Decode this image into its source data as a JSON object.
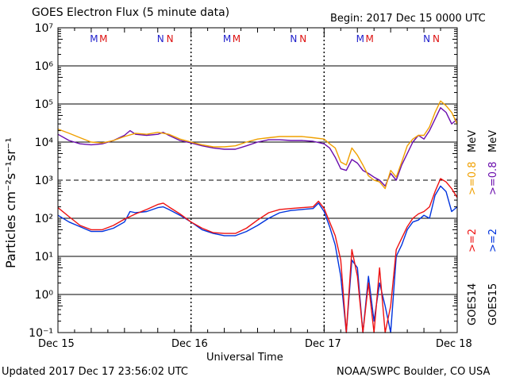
{
  "title": "GOES Electron Flux (5 minute data)",
  "begin": "Begin: 2017 Dec 15 0000 UTC",
  "updated": "Updated 2017 Dec 17 23:56:02 UTC",
  "credit": "NOAA/SWPC Boulder, CO USA",
  "colors": {
    "goes15_gt0_8": "#6a0dad",
    "goes14_gt0_8": "#f0a000",
    "goes15_gt2": "#0033dd",
    "goes14_gt2": "#ee1111",
    "marker_M_blue": "#2222cc",
    "marker_M_red": "#dd1111"
  },
  "chart_data": {
    "type": "line",
    "xlabel": "Universal Time",
    "ylabel": "Particles cm⁻²s⁻¹sr⁻¹",
    "xlim": [
      0,
      72
    ],
    "x_unit": "hours since 2017 Dec 15 0000 UTC",
    "ylim": [
      0.1,
      10000000
    ],
    "yscale": "log",
    "x_ticks": [
      "Dec 15",
      "Dec 16",
      "Dec 17",
      "Dec 18"
    ],
    "y_ticks": [
      "10⁻¹",
      "10⁰",
      "10¹",
      "10²",
      "10³",
      "10⁴",
      "10⁵",
      "10⁶",
      "10⁷"
    ],
    "threshold_line": 1000,
    "legend_right": {
      "goes14": "GOES14",
      "goes15": "GOES15",
      "gt2": ">=2",
      "gt0_8": ">=0.8",
      "unit": "MeV"
    },
    "markers": [
      {
        "hour": 6.5,
        "label": "M",
        "color": "blue"
      },
      {
        "hour": 8.2,
        "label": "M",
        "color": "red"
      },
      {
        "hour": 18.5,
        "label": "N",
        "color": "blue"
      },
      {
        "hour": 20.2,
        "label": "N",
        "color": "red"
      },
      {
        "hour": 30.5,
        "label": "M",
        "color": "blue"
      },
      {
        "hour": 32.2,
        "label": "M",
        "color": "red"
      },
      {
        "hour": 42.5,
        "label": "N",
        "color": "blue"
      },
      {
        "hour": 44.2,
        "label": "N",
        "color": "red"
      },
      {
        "hour": 54.5,
        "label": "M",
        "color": "blue"
      },
      {
        "hour": 56.2,
        "label": "M",
        "color": "red"
      },
      {
        "hour": 66.5,
        "label": "N",
        "color": "blue"
      },
      {
        "hour": 68.2,
        "label": "N",
        "color": "red"
      }
    ],
    "series": [
      {
        "name": "GOES15 >=0.8 MeV",
        "color": "#6a0dad",
        "points": [
          [
            0,
            16000
          ],
          [
            2,
            11000
          ],
          [
            4,
            9000
          ],
          [
            6,
            8500
          ],
          [
            8,
            9000
          ],
          [
            10,
            11000
          ],
          [
            12,
            15000
          ],
          [
            13,
            20000
          ],
          [
            14,
            16000
          ],
          [
            16,
            15000
          ],
          [
            18,
            16000
          ],
          [
            19,
            18000
          ],
          [
            20,
            15000
          ],
          [
            22,
            11000
          ],
          [
            24,
            9500
          ],
          [
            26,
            8000
          ],
          [
            28,
            7000
          ],
          [
            30,
            6500
          ],
          [
            32,
            6500
          ],
          [
            34,
            8000
          ],
          [
            36,
            10000
          ],
          [
            38,
            11500
          ],
          [
            40,
            11500
          ],
          [
            42,
            11000
          ],
          [
            44,
            11000
          ],
          [
            46,
            10500
          ],
          [
            48,
            9000
          ],
          [
            49,
            7000
          ],
          [
            50,
            4000
          ],
          [
            51,
            2000
          ],
          [
            52,
            1800
          ],
          [
            53,
            3500
          ],
          [
            54,
            2800
          ],
          [
            55,
            1800
          ],
          [
            56,
            1500
          ],
          [
            57,
            1200
          ],
          [
            58,
            1000
          ],
          [
            59,
            700
          ],
          [
            60,
            1500
          ],
          [
            61,
            1000
          ],
          [
            62,
            2500
          ],
          [
            63,
            5000
          ],
          [
            64,
            10000
          ],
          [
            65,
            15000
          ],
          [
            66,
            12000
          ],
          [
            67,
            20000
          ],
          [
            68,
            40000
          ],
          [
            69,
            80000
          ],
          [
            70,
            60000
          ],
          [
            71,
            30000
          ],
          [
            72,
            40000
          ]
        ]
      },
      {
        "name": "GOES14 >=0.8 MeV",
        "color": "#f0a000",
        "points": [
          [
            0,
            22000
          ],
          [
            2,
            17000
          ],
          [
            4,
            13000
          ],
          [
            6,
            10000
          ],
          [
            8,
            9500
          ],
          [
            10,
            11000
          ],
          [
            12,
            14000
          ],
          [
            14,
            17000
          ],
          [
            16,
            16000
          ],
          [
            18,
            18000
          ],
          [
            20,
            16000
          ],
          [
            22,
            12000
          ],
          [
            24,
            10000
          ],
          [
            26,
            8500
          ],
          [
            28,
            7500
          ],
          [
            30,
            7500
          ],
          [
            32,
            8000
          ],
          [
            34,
            10000
          ],
          [
            36,
            12000
          ],
          [
            38,
            13000
          ],
          [
            40,
            14000
          ],
          [
            42,
            14000
          ],
          [
            44,
            14000
          ],
          [
            46,
            13000
          ],
          [
            48,
            12000
          ],
          [
            49,
            9000
          ],
          [
            50,
            7000
          ],
          [
            51,
            3000
          ],
          [
            52,
            2500
          ],
          [
            53,
            7000
          ],
          [
            54,
            4500
          ],
          [
            55,
            2500
          ],
          [
            56,
            1300
          ],
          [
            57,
            1000
          ],
          [
            58,
            900
          ],
          [
            59,
            600
          ],
          [
            60,
            1800
          ],
          [
            61,
            1200
          ],
          [
            62,
            3000
          ],
          [
            63,
            8000
          ],
          [
            64,
            12000
          ],
          [
            65,
            15000
          ],
          [
            66,
            15000
          ],
          [
            67,
            25000
          ],
          [
            68,
            60000
          ],
          [
            69,
            120000
          ],
          [
            70,
            90000
          ],
          [
            71,
            60000
          ],
          [
            72,
            30000
          ]
        ]
      },
      {
        "name": "GOES15 >=2 MeV",
        "color": "#0033dd",
        "points": [
          [
            0,
            120
          ],
          [
            2,
            80
          ],
          [
            4,
            60
          ],
          [
            6,
            45
          ],
          [
            8,
            45
          ],
          [
            10,
            55
          ],
          [
            12,
            80
          ],
          [
            13,
            150
          ],
          [
            14,
            140
          ],
          [
            16,
            150
          ],
          [
            18,
            190
          ],
          [
            19,
            200
          ],
          [
            20,
            170
          ],
          [
            22,
            120
          ],
          [
            24,
            80
          ],
          [
            26,
            50
          ],
          [
            28,
            40
          ],
          [
            30,
            35
          ],
          [
            32,
            35
          ],
          [
            34,
            45
          ],
          [
            36,
            65
          ],
          [
            38,
            100
          ],
          [
            40,
            140
          ],
          [
            42,
            160
          ],
          [
            44,
            170
          ],
          [
            46,
            180
          ],
          [
            47,
            250
          ],
          [
            48,
            150
          ],
          [
            49,
            60
          ],
          [
            50,
            20
          ],
          [
            51,
            3
          ],
          [
            52,
            0.1
          ],
          [
            53,
            8
          ],
          [
            54,
            5
          ],
          [
            55,
            0.1
          ],
          [
            56,
            3
          ],
          [
            57,
            0.2
          ],
          [
            58,
            2
          ],
          [
            59,
            0.5
          ],
          [
            60,
            0.1
          ],
          [
            61,
            10
          ],
          [
            62,
            20
          ],
          [
            63,
            50
          ],
          [
            64,
            80
          ],
          [
            65,
            90
          ],
          [
            66,
            120
          ],
          [
            67,
            100
          ],
          [
            68,
            400
          ],
          [
            69,
            700
          ],
          [
            70,
            500
          ],
          [
            71,
            150
          ],
          [
            72,
            200
          ]
        ]
      },
      {
        "name": "GOES14 >=2 MeV",
        "color": "#ee1111",
        "points": [
          [
            0,
            190
          ],
          [
            2,
            110
          ],
          [
            4,
            65
          ],
          [
            6,
            50
          ],
          [
            8,
            50
          ],
          [
            10,
            65
          ],
          [
            12,
            95
          ],
          [
            14,
            130
          ],
          [
            16,
            170
          ],
          [
            18,
            230
          ],
          [
            19,
            250
          ],
          [
            20,
            200
          ],
          [
            22,
            130
          ],
          [
            24,
            80
          ],
          [
            26,
            55
          ],
          [
            28,
            42
          ],
          [
            30,
            40
          ],
          [
            32,
            40
          ],
          [
            34,
            55
          ],
          [
            36,
            90
          ],
          [
            38,
            140
          ],
          [
            40,
            170
          ],
          [
            42,
            180
          ],
          [
            44,
            190
          ],
          [
            46,
            200
          ],
          [
            47,
            280
          ],
          [
            48,
            180
          ],
          [
            49,
            80
          ],
          [
            50,
            35
          ],
          [
            51,
            8
          ],
          [
            52,
            0.1
          ],
          [
            53,
            15
          ],
          [
            54,
            3
          ],
          [
            55,
            0.1
          ],
          [
            56,
            2
          ],
          [
            57,
            0.1
          ],
          [
            58,
            5
          ],
          [
            59,
            0.1
          ],
          [
            60,
            0.5
          ],
          [
            61,
            15
          ],
          [
            62,
            30
          ],
          [
            63,
            60
          ],
          [
            64,
            100
          ],
          [
            65,
            130
          ],
          [
            66,
            150
          ],
          [
            67,
            200
          ],
          [
            68,
            500
          ],
          [
            69,
            1100
          ],
          [
            70,
            900
          ],
          [
            71,
            600
          ],
          [
            72,
            350
          ]
        ]
      }
    ]
  }
}
